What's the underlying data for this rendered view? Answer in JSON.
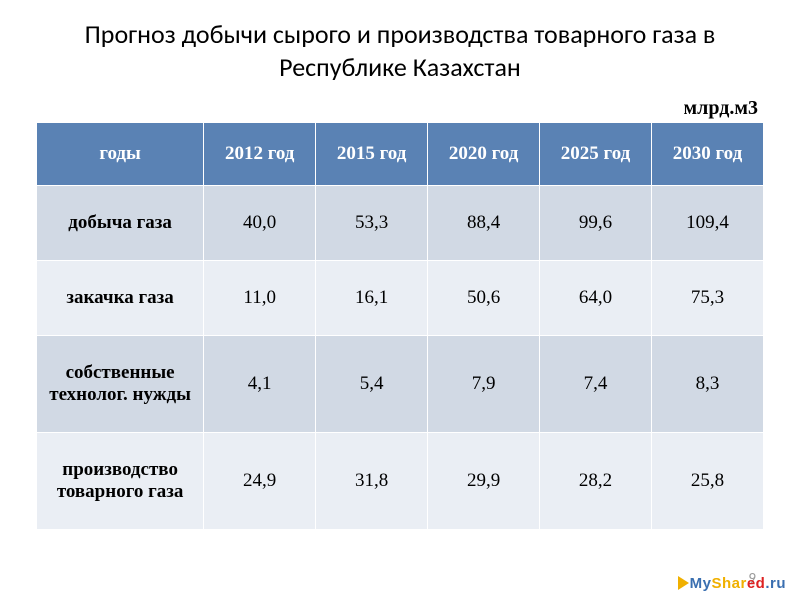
{
  "title": "Прогноз добычи сырого и производства товарного газа в Республике Казахстан",
  "unit_label": "млрд.м3",
  "table": {
    "type": "table",
    "header_bg": "#5a82b4",
    "header_fg": "#ffffff",
    "row_odd_bg": "#d1d9e4",
    "row_even_bg": "#eaeef4",
    "border_color": "#ffffff",
    "font_size": 19,
    "columns": [
      "годы",
      "2012 год",
      "2015 год",
      "2020 год",
      "2025 год",
      "2030 год"
    ],
    "rows": [
      {
        "label": "добыча газа",
        "values": [
          "40,0",
          "53,3",
          "88,4",
          "99,6",
          "109,4"
        ]
      },
      {
        "label": "закачка газа",
        "values": [
          "11,0",
          "16,1",
          "50,6",
          "64,0",
          "75,3"
        ]
      },
      {
        "label": "собственные технолог. нужды",
        "values": [
          "4,1",
          "5,4",
          "7,9",
          "7,4",
          "8,3"
        ]
      },
      {
        "label": "производство товарного газа",
        "values": [
          "24,9",
          "31,8",
          "29,9",
          "28,2",
          "25,8"
        ]
      }
    ]
  },
  "page_number": "9",
  "watermark": {
    "my": "My",
    "shar": "Shar",
    "ed": "ed",
    "ru": ".ru"
  }
}
